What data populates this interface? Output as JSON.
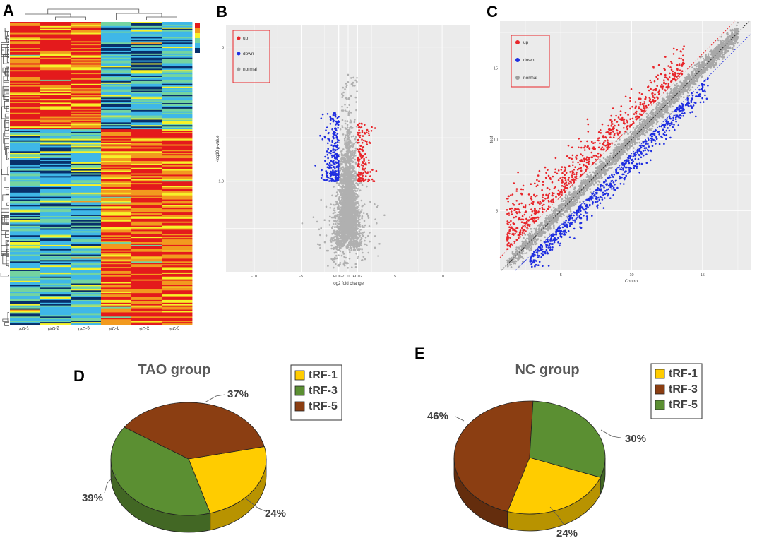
{
  "panels": {
    "a": "A",
    "b": "B",
    "c": "C",
    "d": "D",
    "e": "E"
  },
  "chart_data": [
    {
      "type": "heatmap",
      "panel": "A",
      "columns": [
        "TAO-1",
        "TAO-2",
        "TAO-3",
        "NC-1",
        "NC-2",
        "NC-3"
      ],
      "color_scale": [
        "#08306b",
        "#3fb7e8",
        "#74d4a0",
        "#f6f22a",
        "#f29a1f",
        "#e41a1c"
      ],
      "title": ""
    },
    {
      "type": "scatter",
      "panel": "B",
      "xlabel": "log2 fold change",
      "ylabel": "-log10 p-value",
      "xlim": [
        -13,
        13
      ],
      "ylim": [
        -1.2,
        5.6
      ],
      "xticks": [
        -10,
        -5,
        0,
        5,
        10
      ],
      "yticks": [
        1.3,
        5
      ],
      "ytick_labels": [
        "1.3",
        "5"
      ],
      "vlines": [
        -1,
        1
      ],
      "vline_labels": [
        "FC=-2",
        "FC=2"
      ],
      "hline": 1.3,
      "legend": [
        {
          "label": "up",
          "color": "#e8252a"
        },
        {
          "label": "down",
          "color": "#1f2ee0"
        },
        {
          "label": "normal",
          "color": "#9e9e9e"
        }
      ],
      "legend_position": "top-left"
    },
    {
      "type": "scatter",
      "panel": "C",
      "xlabel": "Control",
      "ylabel": "test",
      "xlim": [
        0.7,
        18.4
      ],
      "ylim": [
        0.8,
        18.3
      ],
      "xticks": [
        5,
        10,
        15
      ],
      "yticks": [
        5,
        10,
        15
      ],
      "reference_lines": [
        "y = x",
        "y = x + 1",
        "y = x - 1"
      ],
      "legend": [
        {
          "label": "up",
          "color": "#e8252a"
        },
        {
          "label": "down",
          "color": "#1f2ee0"
        },
        {
          "label": "normal",
          "color": "#9e9e9e"
        }
      ],
      "legend_position": "top-left"
    },
    {
      "type": "pie",
      "panel": "D",
      "title": "TAO group",
      "slices": [
        {
          "label": "tRF-1",
          "value": 24,
          "text": "24%",
          "color": "#ffcc00"
        },
        {
          "label": "tRF-3",
          "value": 39,
          "text": "39%",
          "color": "#5b8f32"
        },
        {
          "label": "tRF-5",
          "value": 37,
          "text": "37%",
          "color": "#8b3e12"
        }
      ],
      "legend": [
        "tRF-1",
        "tRF-3",
        "tRF-5"
      ],
      "legend_colors": [
        "#ffcc00",
        "#5b8f32",
        "#8b3e12"
      ]
    },
    {
      "type": "pie",
      "panel": "E",
      "title": "NC group",
      "slices": [
        {
          "label": "tRF-1",
          "value": 24,
          "text": "24%",
          "color": "#ffcc00"
        },
        {
          "label": "tRF-3",
          "value": 46,
          "text": "46%",
          "color": "#8b3e12"
        },
        {
          "label": "tRF-5",
          "value": 30,
          "text": "30%",
          "color": "#5b8f32"
        }
      ],
      "legend": [
        "tRF-1",
        "tRF-3",
        "tRF-5"
      ],
      "legend_colors": [
        "#ffcc00",
        "#8b3e12",
        "#5b8f32"
      ]
    }
  ]
}
